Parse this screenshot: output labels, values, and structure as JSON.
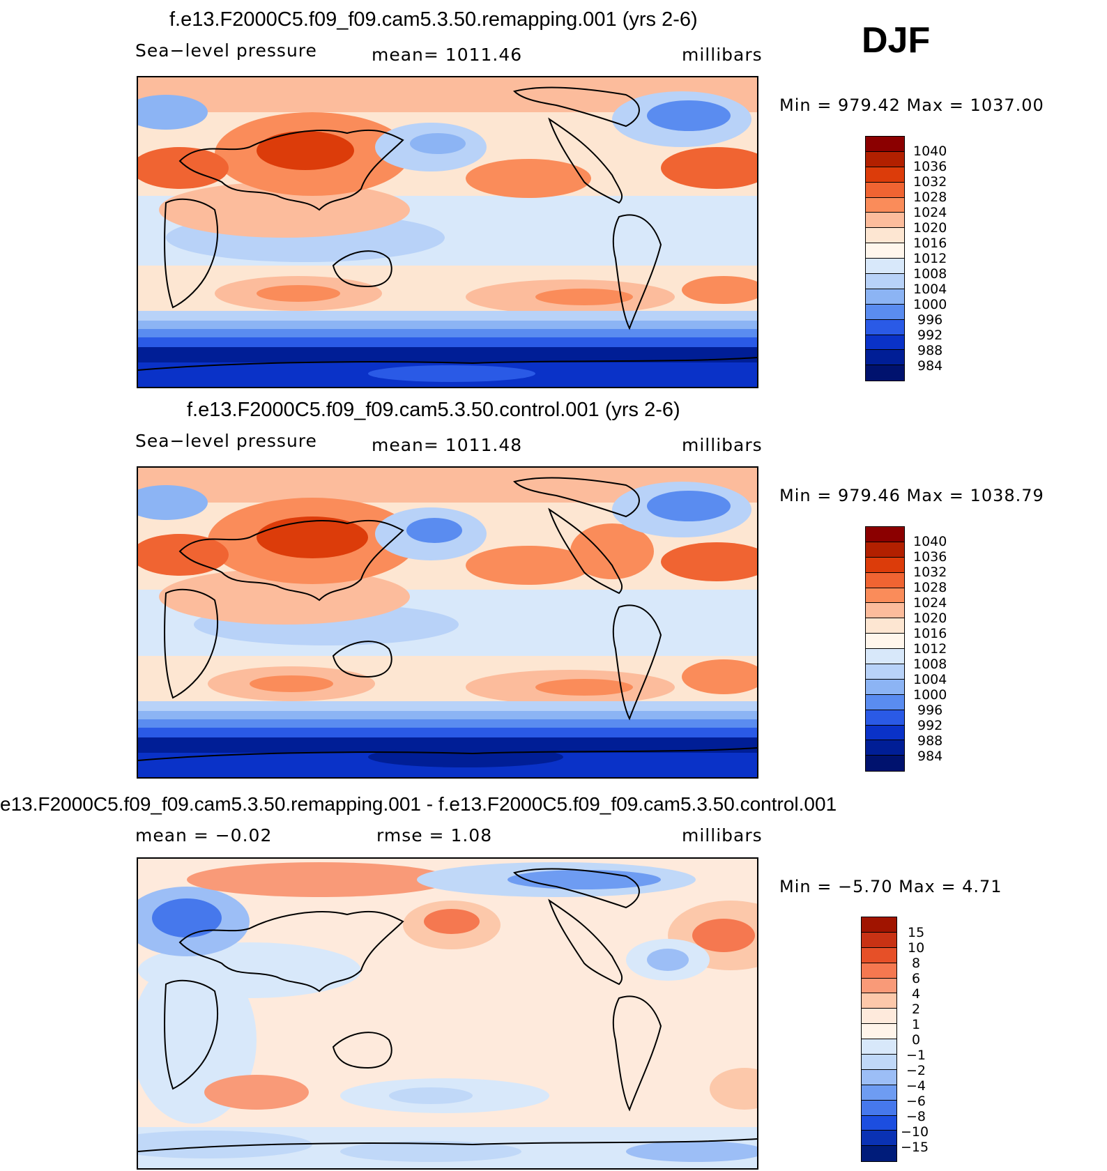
{
  "season": "DJF",
  "panels": [
    {
      "id": "remapping",
      "title": "f.e13.F2000C5.f09_f09.cam5.3.50.remapping.001 (yrs 2-6)",
      "left_label": "Sea−level pressure",
      "center_label": "mean=  1011.46",
      "units": "millibars",
      "minmax": "Min  =  979.42  Max  =  1037.00",
      "levels": [
        "1040",
        "1036",
        "1032",
        "1028",
        "1024",
        "1020",
        "1016",
        "1012",
        "1008",
        "1004",
        "1000",
        "996",
        "992",
        "988",
        "984"
      ]
    },
    {
      "id": "control",
      "title": "f.e13.F2000C5.f09_f09.cam5.3.50.control.001 (yrs 2-6)",
      "left_label": "Sea−level pressure",
      "center_label": "mean=  1011.48",
      "units": "millibars",
      "minmax": "Min  =  979.46  Max  =  1038.79",
      "levels": [
        "1040",
        "1036",
        "1032",
        "1028",
        "1024",
        "1020",
        "1016",
        "1012",
        "1008",
        "1004",
        "1000",
        "996",
        "992",
        "988",
        "984"
      ]
    },
    {
      "id": "difference",
      "title": "e13.F2000C5.f09_f09.cam5.3.50.remapping.001 - f.e13.F2000C5.f09_f09.cam5.3.50.control.001",
      "left_label": "mean  =    −0.02",
      "center_label": "rmse  =      1.08",
      "units": "millibars",
      "minmax": "Min  =    −5.70  Max  =      4.71",
      "levels": [
        "15",
        "10",
        "8",
        "6",
        "4",
        "2",
        "1",
        "0",
        "−1",
        "−2",
        "−4",
        "−6",
        "−8",
        "−10",
        "−15"
      ]
    }
  ],
  "colors": {
    "scale": [
      "#8b0000",
      "#b22000",
      "#dc3c0a",
      "#f06432",
      "#fa8c5a",
      "#fcbc9c",
      "#fde6d2",
      "#fff6ec",
      "#d8e8fa",
      "#b8d2f8",
      "#8cb4f4",
      "#5a8cf0",
      "#2a5ae6",
      "#0a32c8",
      "#001e96",
      "#00126e"
    ],
    "diff_scale": [
      "#a01400",
      "#c83214",
      "#e65028",
      "#f57850",
      "#f99a78",
      "#fcc8aa",
      "#feeadc",
      "#fff4ea",
      "#d8e8fa",
      "#c0d8f8",
      "#9cbef6",
      "#6e9cf2",
      "#4678ec",
      "#1c4ee0",
      "#0a32b4",
      "#001c7a"
    ]
  }
}
